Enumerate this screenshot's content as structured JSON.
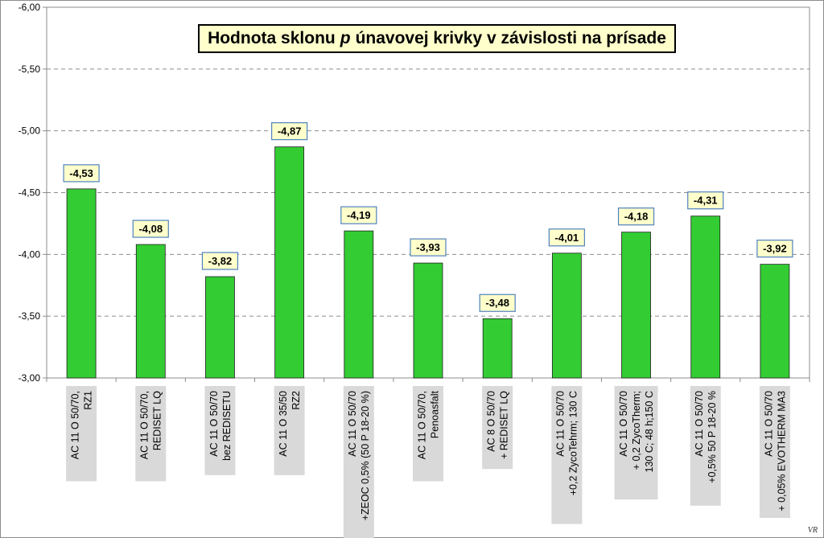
{
  "chart_data": {
    "type": "bar",
    "title_parts": [
      "Hodnota sklonu",
      "p",
      "únavovej krivky v závislosti na prísade"
    ],
    "title": "Hodnota sklonu p únavovej krivky v závislosti na prísade",
    "ylim": [
      -3.0,
      -6.0
    ],
    "y_inverted": true,
    "y_ticks": [
      "-3,00",
      "-3,50",
      "-4,00",
      "-4,50",
      "-5,00",
      "-5,50",
      "-6,00"
    ],
    "y_tick_values": [
      -3.0,
      -3.5,
      -4.0,
      -4.5,
      -5.0,
      -5.5,
      -6.0
    ],
    "grid": "horizontal dashed",
    "legend": "none",
    "bar_color": "#33cc33",
    "categories": [
      [
        "AC 11 O 50/70,",
        "RZ1"
      ],
      [
        "AC 11 O 50/70,",
        "REDISET LQ"
      ],
      [
        "AC 11 O 50/70",
        "bez REDISETU"
      ],
      [
        "AC 11 O 35/50",
        "RZ2"
      ],
      [
        "AC 11 O 50/70",
        "+ZEOC 0,5% (50 P 18-20 %)"
      ],
      [
        "AC 11 O 50/70,",
        "Penoasfalt"
      ],
      [
        "AC 8 O 50/70",
        "+ REDISET LQ"
      ],
      [
        "AC 11 O 50/70",
        "+0,2 ZycoTehrm; 130 C"
      ],
      [
        "AC 11 O 50/70",
        "+ 0,2 ZycoTherm;",
        "130 C; 48 h;150 C"
      ],
      [
        "AC 11 O 50/70",
        "+0,5% 50 P 18-20 %"
      ],
      [
        "AC 11 O 50/70",
        "+ 0,05% EVOTHERM MA3"
      ]
    ],
    "values": [
      -4.53,
      -4.08,
      -3.82,
      -4.87,
      -4.19,
      -3.93,
      -3.48,
      -4.01,
      -4.18,
      -4.31,
      -3.92
    ],
    "value_labels": [
      "-4,53",
      "-4,08",
      "-3,82",
      "-4,87",
      "-4,19",
      "-3,93",
      "-3,48",
      "-4,01",
      "-4,18",
      "-4,31",
      "-3,92"
    ]
  },
  "signature": "VR"
}
